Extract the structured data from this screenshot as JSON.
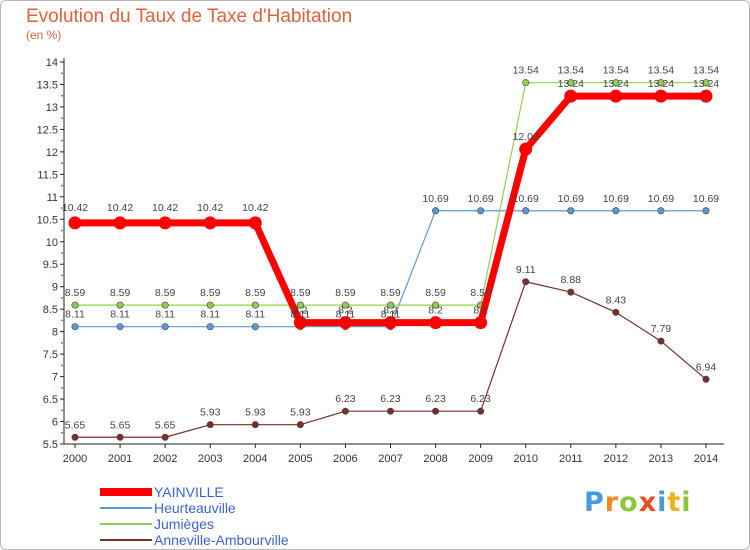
{
  "title": "Evolution du Taux de Taxe d'Habitation",
  "subtitle": "(en %)",
  "logo": {
    "text": "Proxiti",
    "letters": [
      {
        "ch": "P",
        "color": "#4b9ad8"
      },
      {
        "ch": "r",
        "color": "#f08a24"
      },
      {
        "ch": "o",
        "color": "#8cc63f"
      },
      {
        "ch": "x",
        "color": "#e94e1b"
      },
      {
        "ch": "i",
        "color": "#4b9ad8"
      },
      {
        "ch": "t",
        "color": "#f2b21b"
      },
      {
        "ch": "i",
        "color": "#8cc63f"
      }
    ]
  },
  "chart_data": {
    "type": "line",
    "x": [
      "2000",
      "2001",
      "2002",
      "2003",
      "2004",
      "2005",
      "2006",
      "2007",
      "2008",
      "2009",
      "2010",
      "2011",
      "2012",
      "2013",
      "2014"
    ],
    "ylim": [
      5.5,
      14
    ],
    "yticks": [
      "5.5",
      "6",
      "6.5",
      "7",
      "7.5",
      "8",
      "8.5",
      "9",
      "9.5",
      "10",
      "10.5",
      "11",
      "11.5",
      "12",
      "12.5",
      "13",
      "13.5",
      "14"
    ],
    "grid": false,
    "legend_position": "bottom-left",
    "series": [
      {
        "name": "YAINVILLE",
        "color": "#ff0000",
        "values": [
          10.42,
          10.42,
          10.42,
          10.42,
          10.42,
          8.2,
          8.2,
          8.2,
          8.2,
          8.2,
          12.06,
          13.24,
          13.24,
          13.24,
          13.24
        ],
        "labels": [
          "",
          "",
          "",
          "",
          "",
          "8.2",
          "8.2",
          "8.2",
          "8.2",
          "8.2",
          "12.06",
          "13.24",
          "13.24",
          "13.24",
          "13.24"
        ]
      },
      {
        "name": "Heurteauville",
        "color": "#5b9bd5",
        "values": [
          8.11,
          8.11,
          8.11,
          8.11,
          8.11,
          8.11,
          8.11,
          8.11,
          10.69,
          10.69,
          10.69,
          10.69,
          10.69,
          10.69,
          10.69
        ],
        "labels": [
          "8.11",
          "8.11",
          "8.11",
          "8.11",
          "8.11",
          "8.11",
          "8.11",
          "8.11",
          "10.69",
          "10.69",
          "10.69",
          "10.69",
          "10.69",
          "10.69",
          "10.69"
        ]
      },
      {
        "name": "Jumièges",
        "color": "#8fd14f",
        "values": [
          8.59,
          8.59,
          8.59,
          8.59,
          8.59,
          8.59,
          8.59,
          8.59,
          8.59,
          8.59,
          13.54,
          13.54,
          13.54,
          13.54,
          13.54
        ],
        "labels": [
          "8.59",
          "8.59",
          "8.59",
          "8.59",
          "8.59",
          "8.59",
          "8.59",
          "8.59",
          "8.59",
          "8.59",
          "13.54",
          "13.54",
          "13.54",
          "13.54",
          "13.54"
        ]
      },
      {
        "name": "Anneville-Ambourville",
        "color": "#7a2e2e",
        "values": [
          5.65,
          5.65,
          5.65,
          5.93,
          5.93,
          5.93,
          6.23,
          6.23,
          6.23,
          6.23,
          9.11,
          8.88,
          8.43,
          7.79,
          6.94
        ],
        "labels": [
          "5.65",
          "5.65",
          "5.65",
          "5.93",
          "5.93",
          "5.93",
          "6.23",
          "6.23",
          "6.23",
          "6.23",
          "9.11",
          "8.88",
          "8.43",
          "7.79",
          "6.94"
        ]
      }
    ],
    "top_labels": [
      "10.42",
      "10.42",
      "10.42",
      "10.42",
      "10.42"
    ]
  }
}
